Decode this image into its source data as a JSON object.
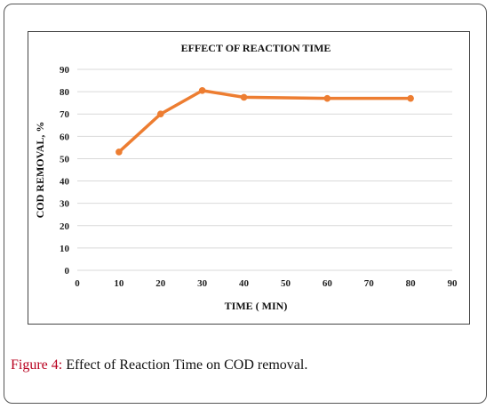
{
  "chart_data": {
    "type": "line",
    "title": "EFFECT OF REACTION TIME",
    "xlabel": "TIME ( MIN)",
    "ylabel": "COD REMOVAL, %",
    "xlim": [
      0,
      90
    ],
    "ylim": [
      0,
      90
    ],
    "xticks": [
      0,
      10,
      20,
      30,
      40,
      50,
      60,
      70,
      80,
      90
    ],
    "yticks": [
      0,
      10,
      20,
      30,
      40,
      50,
      60,
      70,
      80,
      90
    ],
    "grid": true,
    "series": [
      {
        "x": [
          10,
          20,
          30,
          40,
          60,
          80
        ],
        "y": [
          53,
          70,
          80.5,
          77.5,
          77,
          77
        ],
        "color": "#ed7d31"
      }
    ]
  },
  "caption": {
    "label": "Figure 4:",
    "text": " Effect of Reaction Time on COD removal."
  }
}
